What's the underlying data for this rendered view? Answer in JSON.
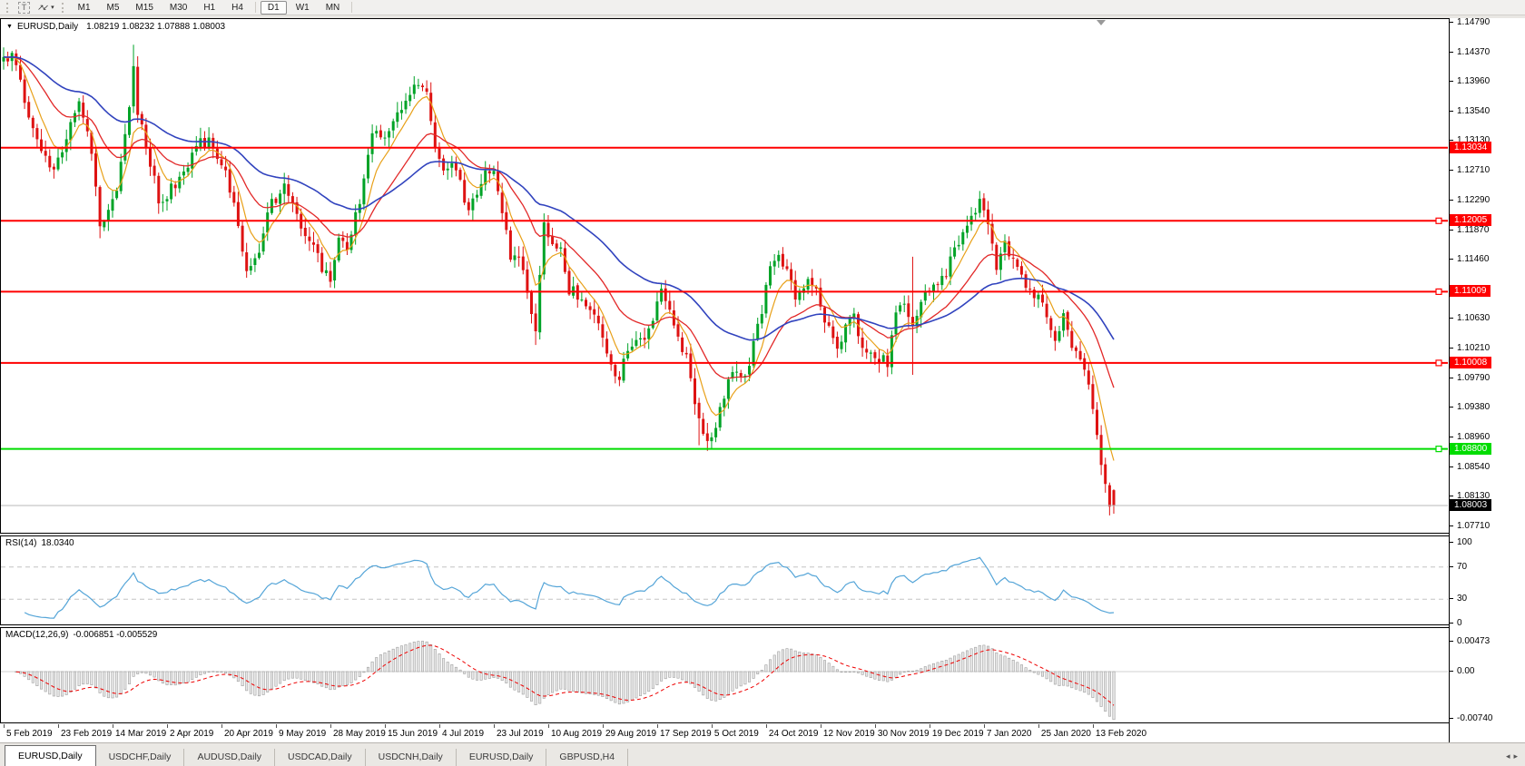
{
  "toolbar": {
    "text_tool_label": "T",
    "timeframes": [
      "M1",
      "M5",
      "M15",
      "M30",
      "H1",
      "H4",
      "D1",
      "W1",
      "MN"
    ],
    "active_timeframe": "D1"
  },
  "chart": {
    "header_symbol": "EURUSD,Daily",
    "header_ohlc": "1.08219 1.08232 1.07888 1.08003",
    "price_axis_ticks": [
      "1.14790",
      "1.14370",
      "1.13960",
      "1.13540",
      "1.13130",
      "1.12710",
      "1.12290",
      "1.11870",
      "1.11460",
      "1.11040",
      "1.10630",
      "1.10210",
      "1.09790",
      "1.09380",
      "1.08960",
      "1.08540",
      "1.08130",
      "1.07710"
    ],
    "hlines": [
      {
        "price": 1.13034,
        "label": "1.13034",
        "color": "#FF0000",
        "handle": false
      },
      {
        "price": 1.12005,
        "label": "1.12005",
        "color": "#FF0000",
        "handle": true
      },
      {
        "price": 1.11009,
        "label": "1.11009",
        "color": "#FF0000",
        "handle": true
      },
      {
        "price": 1.10008,
        "label": "1.10008",
        "color": "#FF0000",
        "handle": true
      },
      {
        "price": 1.088,
        "label": "1.08800",
        "color": "#00DC00",
        "handle": true
      }
    ],
    "current_price": {
      "price": 1.08003,
      "label": "1.08003",
      "line_color": "#B8B8B8",
      "chip_bg": "#000000"
    }
  },
  "rsi_panel": {
    "name": "RSI(14)",
    "value": "18.0340",
    "axis_labels": [
      "100",
      "70",
      "30",
      "0"
    ],
    "dashed_levels": [
      70,
      30
    ],
    "line_color": "#55A5D8"
  },
  "macd_panel": {
    "name": "MACD(12,26,9)",
    "value": "-0.006851 -0.005529",
    "axis_labels": [
      "0.00473",
      "0.00",
      "-0.00740"
    ],
    "histogram_fill": "#E8E8E8",
    "histogram_stroke": "#9E9E9E",
    "signal_color": "#EE0000"
  },
  "date_axis": [
    "5 Feb 2019",
    "23 Feb 2019",
    "14 Mar 2019",
    "2 Apr 2019",
    "20 Apr 2019",
    "9 May 2019",
    "28 May 2019",
    "15 Jun 2019",
    "4 Jul 2019",
    "23 Jul 2019",
    "10 Aug 2019",
    "29 Aug 2019",
    "17 Sep 2019",
    "5 Oct 2019",
    "24 Oct 2019",
    "12 Nov 2019",
    "30 Nov 2019",
    "19 Dec 2019",
    "7 Jan 2020",
    "25 Jan 2020",
    "13 Feb 2020"
  ],
  "tabs": [
    "EURUSD,Daily",
    "USDCHF,Daily",
    "AUDUSD,Daily",
    "USDCAD,Daily",
    "USDCNH,Daily",
    "EURUSD,Daily",
    "GBPUSD,H4"
  ],
  "active_tab_index": 0,
  "chart_data": {
    "type": "candlestick",
    "symbol": "EURUSD",
    "timeframe": "Daily",
    "visible_price_range": [
      1.0761,
      1.1483
    ],
    "num_candles": 266,
    "days_per_date_tick": 13,
    "last_candle": {
      "o": 1.08219,
      "h": 1.08232,
      "l": 1.07888,
      "c": 1.08003
    },
    "price_anchors": [
      [
        0,
        1.1425
      ],
      [
        2,
        1.1438
      ],
      [
        4,
        1.1395
      ],
      [
        6,
        1.135
      ],
      [
        9,
        1.13
      ],
      [
        12,
        1.1268
      ],
      [
        14,
        1.1305
      ],
      [
        16,
        1.1338
      ],
      [
        18,
        1.1368
      ],
      [
        20,
        1.133
      ],
      [
        22,
        1.1255
      ],
      [
        23,
        1.119
      ],
      [
        25,
        1.1215
      ],
      [
        27,
        1.1245
      ],
      [
        29,
        1.132
      ],
      [
        30,
        1.1355
      ],
      [
        31,
        1.142
      ],
      [
        32,
        1.1355
      ],
      [
        34,
        1.131
      ],
      [
        37,
        1.123
      ],
      [
        40,
        1.1245
      ],
      [
        43,
        1.127
      ],
      [
        46,
        1.1305
      ],
      [
        49,
        1.1315
      ],
      [
        52,
        1.1285
      ],
      [
        55,
        1.123
      ],
      [
        57,
        1.116
      ],
      [
        58,
        1.1125
      ],
      [
        60,
        1.114
      ],
      [
        62,
        1.1185
      ],
      [
        64,
        1.1225
      ],
      [
        67,
        1.1245
      ],
      [
        70,
        1.1205
      ],
      [
        73,
        1.117
      ],
      [
        76,
        1.1135
      ],
      [
        78,
        1.112
      ],
      [
        80,
        1.1175
      ],
      [
        82,
        1.1165
      ],
      [
        84,
        1.121
      ],
      [
        86,
        1.1255
      ],
      [
        88,
        1.133
      ],
      [
        90,
        1.131
      ],
      [
        93,
        1.134
      ],
      [
        96,
        1.1365
      ],
      [
        99,
        1.1395
      ],
      [
        101,
        1.1375
      ],
      [
        103,
        1.131
      ],
      [
        105,
        1.1275
      ],
      [
        107,
        1.1285
      ],
      [
        109,
        1.125
      ],
      [
        111,
        1.1215
      ],
      [
        113,
        1.124
      ],
      [
        115,
        1.1265
      ],
      [
        117,
        1.127
      ],
      [
        119,
        1.1205
      ],
      [
        121,
        1.1155
      ],
      [
        123,
        1.1145
      ],
      [
        125,
        1.1105
      ],
      [
        127,
        1.1045
      ],
      [
        129,
        1.1195
      ],
      [
        131,
        1.1175
      ],
      [
        133,
        1.1165
      ],
      [
        135,
        1.1105
      ],
      [
        137,
        1.1095
      ],
      [
        139,
        1.1085
      ],
      [
        141,
        1.106
      ],
      [
        143,
        1.1035
      ],
      [
        145,
        1.0995
      ],
      [
        147,
        1.0985
      ],
      [
        149,
        1.102
      ],
      [
        151,
        1.104
      ],
      [
        153,
        1.103
      ],
      [
        155,
        1.1065
      ],
      [
        157,
        1.11
      ],
      [
        159,
        1.1075
      ],
      [
        161,
        1.104
      ],
      [
        163,
        1.1005
      ],
      [
        165,
        1.0945
      ],
      [
        167,
        1.0905
      ],
      [
        169,
        1.089
      ],
      [
        171,
        1.093
      ],
      [
        173,
        1.097
      ],
      [
        175,
        1.099
      ],
      [
        177,
        1.098
      ],
      [
        179,
        1.103
      ],
      [
        181,
        1.1075
      ],
      [
        183,
        1.113
      ],
      [
        185,
        1.1155
      ],
      [
        187,
        1.113
      ],
      [
        189,
        1.1085
      ],
      [
        191,
        1.111
      ],
      [
        193,
        1.1115
      ],
      [
        195,
        1.108
      ],
      [
        197,
        1.1045
      ],
      [
        199,
        1.1015
      ],
      [
        201,
        1.106
      ],
      [
        203,
        1.1075
      ],
      [
        205,
        1.1015
      ],
      [
        207,
        1.102
      ],
      [
        209,
        1.101
      ],
      [
        211,
        1.1
      ],
      [
        213,
        1.107
      ],
      [
        215,
        1.108
      ],
      [
        217,
        1.106
      ],
      [
        219,
        1.108
      ],
      [
        221,
        1.1105
      ],
      [
        223,
        1.1115
      ],
      [
        225,
        1.113
      ],
      [
        227,
        1.116
      ],
      [
        229,
        1.118
      ],
      [
        231,
        1.12
      ],
      [
        233,
        1.1225
      ],
      [
        235,
        1.119
      ],
      [
        237,
        1.114
      ],
      [
        239,
        1.1165
      ],
      [
        241,
        1.115
      ],
      [
        243,
        1.1125
      ],
      [
        245,
        1.1105
      ],
      [
        247,
        1.1095
      ],
      [
        249,
        1.106
      ],
      [
        251,
        1.103
      ],
      [
        253,
        1.1075
      ],
      [
        255,
        1.1025
      ],
      [
        257,
        1.1
      ],
      [
        258,
        1.0985
      ],
      [
        259,
        1.0965
      ],
      [
        260,
        1.094
      ],
      [
        261,
        1.0905
      ],
      [
        262,
        1.0865
      ],
      [
        263,
        1.083
      ],
      [
        264,
        1.0805
      ],
      [
        265,
        1.08
      ]
    ],
    "spikes": [
      {
        "d": 23,
        "l": 1.1176
      },
      {
        "d": 31,
        "h": 1.1448
      },
      {
        "d": 127,
        "l": 1.1026
      },
      {
        "d": 166,
        "l": 1.0885
      },
      {
        "d": 169,
        "l": 1.0879
      },
      {
        "d": 217,
        "h": 1.115,
        "l": 1.0984
      }
    ],
    "ma_periods": {
      "fast": 7,
      "medium": 21,
      "slow": 50
    },
    "ma_colors": {
      "fast": "#E8A018",
      "medium": "#E22828",
      "slow": "#3143BE"
    },
    "candle_colors": {
      "up": "#00A327",
      "down": "#DE1212"
    },
    "rsi_period": 14,
    "macd_params": [
      12,
      26,
      9
    ],
    "seed": 20200213
  }
}
